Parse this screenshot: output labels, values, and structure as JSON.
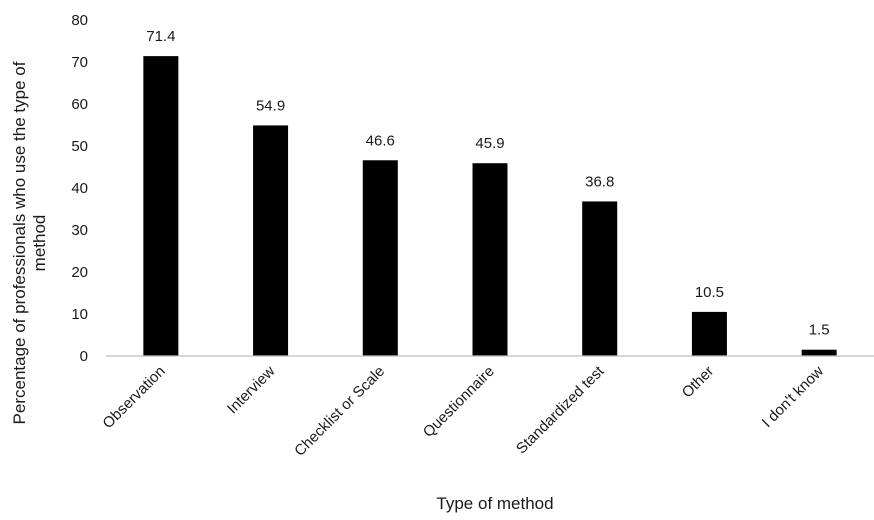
{
  "chart_data": {
    "type": "bar",
    "title": "",
    "xlabel": "Type of method",
    "ylabel_lines": [
      "Percentage of professionals who use the type of",
      "method"
    ],
    "categories": [
      "Observation",
      "Interview",
      "Checklist or Scale",
      "Questionnaire",
      "Standardized test",
      "Other",
      "I don't know"
    ],
    "values": [
      71.4,
      54.9,
      46.6,
      45.9,
      36.8,
      10.5,
      1.5
    ],
    "value_labels": [
      "71.4",
      "54.9",
      "46.6",
      "45.9",
      "36.8",
      "10.5",
      "1.5"
    ],
    "ylim": [
      0,
      80
    ],
    "yticks": [
      0,
      10,
      20,
      30,
      40,
      50,
      60,
      70,
      80
    ],
    "grid": false,
    "legend": "none",
    "bar_color": "#000000",
    "axis_color": "#bfbfbf"
  }
}
